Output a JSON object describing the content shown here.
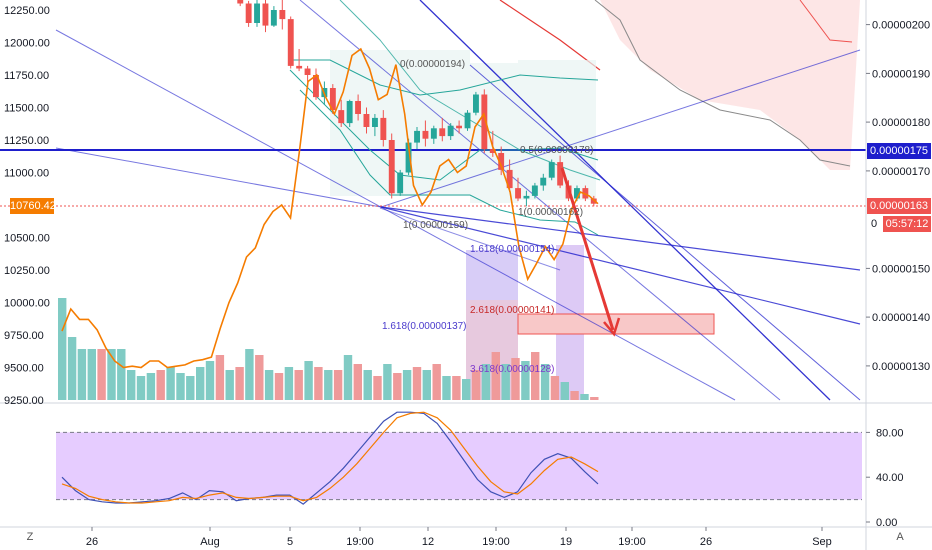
{
  "colors": {
    "up": "#26a69a",
    "down": "#ef5350",
    "up_vol": "#80cbc4",
    "down_vol": "#ef9a9a",
    "orange": "#f57c00",
    "trend": "#1e1ecc",
    "rsi_fill": "#e6ccff",
    "rsi_blue": "#3f51b5",
    "rsi_orange": "#f57c00",
    "cloud": "#fde0e0",
    "bg": "#ffffff",
    "grid": "#e0e3eb"
  },
  "left_axis": {
    "ticks": [
      "12250.00",
      "12000.00",
      "11750.00",
      "11500.00",
      "11250.00",
      "11000.00",
      "10500.00",
      "10250.00",
      "10000.00",
      "9750.00",
      "9500.00",
      "9250.00"
    ],
    "price_tag": "10760.42"
  },
  "right_axis": {
    "ticks": [
      "0.00000200",
      "0.00000190",
      "0.00000180",
      "0.00000170",
      "0.00000150",
      "0.00000140",
      "0.00000130"
    ],
    "blue_tag": "0.00000175",
    "red_tag": "0.00000163",
    "timer_tag": "05:57:12",
    "stub": "0"
  },
  "rsi_axis": {
    "ticks": [
      "80.00",
      "40.00",
      "0.00"
    ]
  },
  "x_axis": {
    "labels": [
      "26",
      "Aug",
      "5",
      "19:00",
      "12",
      "19:00",
      "19",
      "19:00",
      "26",
      "Sep"
    ],
    "left_icon": "Z",
    "right_icon": "A"
  },
  "fib": {
    "f0": "0(0.00000194)",
    "f05": "0.5(0.00000178)",
    "f1_top": "1(0.00000162)",
    "f1_bot": "1(0.00000159)",
    "f1618_a": "1.618(0.00000154)",
    "f2618": "2.618(0.00000141)",
    "f1618_b": "1.618(0.00000137)",
    "f3618": "3.618(0.00000128)"
  },
  "chart_data": {
    "type": "candlestick",
    "price_scale_left": [
      9250,
      12250
    ],
    "price_scale_right": [
      1.23e-06,
      2.03e-06
    ],
    "rsi_range": [
      0,
      100
    ],
    "candles": [
      {
        "o": 12330,
        "h": 12360,
        "l": 12280,
        "c": 12300
      },
      {
        "o": 12300,
        "h": 12320,
        "l": 12120,
        "c": 12150
      },
      {
        "o": 12150,
        "h": 12330,
        "l": 12120,
        "c": 12300
      },
      {
        "o": 12300,
        "h": 12350,
        "l": 12080,
        "c": 12130
      },
      {
        "o": 12130,
        "h": 12280,
        "l": 12120,
        "c": 12250
      },
      {
        "o": 12250,
        "h": 12330,
        "l": 12100,
        "c": 12180
      },
      {
        "o": 12180,
        "h": 12200,
        "l": 11800,
        "c": 11820
      },
      {
        "o": 11820,
        "h": 11950,
        "l": 11780,
        "c": 11800
      },
      {
        "o": 11800,
        "h": 11820,
        "l": 11700,
        "c": 11750
      },
      {
        "o": 11750,
        "h": 11800,
        "l": 11560,
        "c": 11580
      },
      {
        "o": 11580,
        "h": 11700,
        "l": 11520,
        "c": 11650
      },
      {
        "o": 11650,
        "h": 11680,
        "l": 11450,
        "c": 11480
      },
      {
        "o": 11480,
        "h": 11560,
        "l": 11350,
        "c": 11380
      },
      {
        "o": 11380,
        "h": 11560,
        "l": 11350,
        "c": 11550
      },
      {
        "o": 11550,
        "h": 11600,
        "l": 11400,
        "c": 11450
      },
      {
        "o": 11450,
        "h": 11500,
        "l": 11300,
        "c": 11350
      },
      {
        "o": 11350,
        "h": 11450,
        "l": 11280,
        "c": 11420
      },
      {
        "o": 11420,
        "h": 11480,
        "l": 11200,
        "c": 11250
      },
      {
        "o": 11250,
        "h": 11300,
        "l": 10800,
        "c": 10840
      },
      {
        "o": 10840,
        "h": 11020,
        "l": 10820,
        "c": 11000
      },
      {
        "o": 11000,
        "h": 11260,
        "l": 10980,
        "c": 11230
      },
      {
        "o": 11230,
        "h": 11350,
        "l": 11180,
        "c": 11320
      },
      {
        "o": 11320,
        "h": 11400,
        "l": 11200,
        "c": 11260
      },
      {
        "o": 11260,
        "h": 11360,
        "l": 11220,
        "c": 11340
      },
      {
        "o": 11340,
        "h": 11420,
        "l": 11240,
        "c": 11280
      },
      {
        "o": 11280,
        "h": 11380,
        "l": 11250,
        "c": 11360
      },
      {
        "o": 11360,
        "h": 11400,
        "l": 11300,
        "c": 11340
      },
      {
        "o": 11340,
        "h": 11480,
        "l": 11320,
        "c": 11460
      },
      {
        "o": 11460,
        "h": 11620,
        "l": 11440,
        "c": 11600
      },
      {
        "o": 11600,
        "h": 11640,
        "l": 11150,
        "c": 11180
      },
      {
        "o": 11180,
        "h": 11320,
        "l": 11120,
        "c": 11150
      },
      {
        "o": 11150,
        "h": 11200,
        "l": 10980,
        "c": 11020
      },
      {
        "o": 11020,
        "h": 11100,
        "l": 10850,
        "c": 10880
      },
      {
        "o": 10880,
        "h": 10960,
        "l": 10780,
        "c": 10800
      },
      {
        "o": 10800,
        "h": 10860,
        "l": 10740,
        "c": 10820
      },
      {
        "o": 10820,
        "h": 10920,
        "l": 10800,
        "c": 10900
      },
      {
        "o": 10900,
        "h": 10990,
        "l": 10860,
        "c": 10960
      },
      {
        "o": 10960,
        "h": 11100,
        "l": 10940,
        "c": 11080
      },
      {
        "o": 11080,
        "h": 11130,
        "l": 10880,
        "c": 10900
      },
      {
        "o": 10900,
        "h": 10940,
        "l": 10780,
        "c": 10800
      },
      {
        "o": 10800,
        "h": 10900,
        "l": 10780,
        "c": 10880
      },
      {
        "o": 10880,
        "h": 10900,
        "l": 10780,
        "c": 10800
      },
      {
        "o": 10800,
        "h": 10820,
        "l": 10740,
        "c": 10760
      }
    ],
    "volume": [
      34,
      21,
      17,
      17,
      17,
      17,
      17,
      10,
      8,
      9,
      10,
      11,
      9,
      8,
      11,
      13,
      15,
      10,
      11,
      17,
      15,
      10,
      9,
      11,
      10,
      13,
      11,
      10,
      10,
      15,
      12,
      10,
      8,
      12,
      9,
      10,
      11,
      10,
      12,
      8,
      8,
      7,
      10,
      12,
      16,
      12,
      14,
      13,
      16,
      12,
      8,
      6,
      3,
      2,
      1
    ],
    "orange_line": [
      9780,
      9950,
      9870,
      9870,
      9790,
      9650,
      9550,
      9500,
      9510,
      9500,
      9550,
      9550,
      9500,
      9510,
      9520,
      9550,
      9560,
      9580,
      9800,
      10000,
      10150,
      10350,
      10420,
      10600,
      10700,
      10750,
      10650,
      11150,
      11700,
      11750,
      11580,
      11450,
      11620,
      11900,
      11950,
      11800,
      11560,
      11600,
      11830,
      11450,
      10900,
      10750,
      10850,
      11050,
      11100,
      11000,
      11050,
      11350,
      11450,
      11200,
      11050,
      10850,
      10430,
      10180,
      10300,
      10430,
      10330,
      10450,
      10720,
      10850,
      10820,
      10760
    ],
    "rsi_blue": [
      40,
      28,
      20,
      18,
      17,
      17,
      18,
      19,
      21,
      26,
      20,
      28,
      27,
      19,
      21,
      22,
      24,
      24,
      16,
      26,
      36,
      48,
      62,
      76,
      90,
      98,
      98,
      97,
      88,
      72,
      55,
      38,
      27,
      22,
      27,
      44,
      56,
      61,
      57,
      45,
      34
    ],
    "rsi_orange": [
      34,
      30,
      23,
      20,
      18,
      17,
      17,
      18,
      19,
      22,
      21,
      24,
      26,
      22,
      21,
      22,
      23,
      23,
      19,
      22,
      30,
      40,
      52,
      66,
      80,
      93,
      97,
      98,
      93,
      82,
      66,
      50,
      36,
      27,
      25,
      34,
      46,
      56,
      58,
      52,
      45
    ]
  }
}
